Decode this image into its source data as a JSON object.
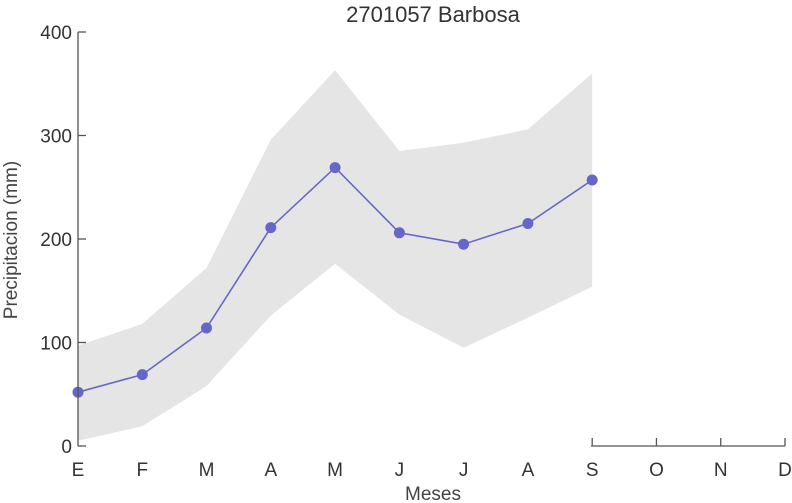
{
  "chart_data": {
    "type": "line",
    "title": "2701057 Barbosa",
    "xlabel": "Meses",
    "ylabel": "Precipitacion (mm)",
    "categories": [
      "E",
      "F",
      "M",
      "A",
      "M",
      "J",
      "J",
      "A",
      "S",
      "O",
      "N",
      "D"
    ],
    "ylim": [
      0,
      400
    ],
    "yticks": [
      0,
      100,
      200,
      300,
      400
    ],
    "grid": false,
    "series": [
      {
        "values": [
          52,
          69,
          114,
          211,
          269,
          206,
          195,
          215,
          257,
          null,
          null,
          null
        ]
      }
    ],
    "band": {
      "upper": [
        97,
        118,
        172,
        296,
        363,
        285,
        293,
        306,
        360,
        null,
        null,
        null
      ],
      "lower": [
        5,
        19,
        58,
        126,
        176,
        127,
        95,
        124,
        154,
        null,
        null,
        null
      ]
    },
    "colors": {
      "line": "#6566c9",
      "band": "#e5e5e5",
      "axis": "#555555"
    }
  }
}
